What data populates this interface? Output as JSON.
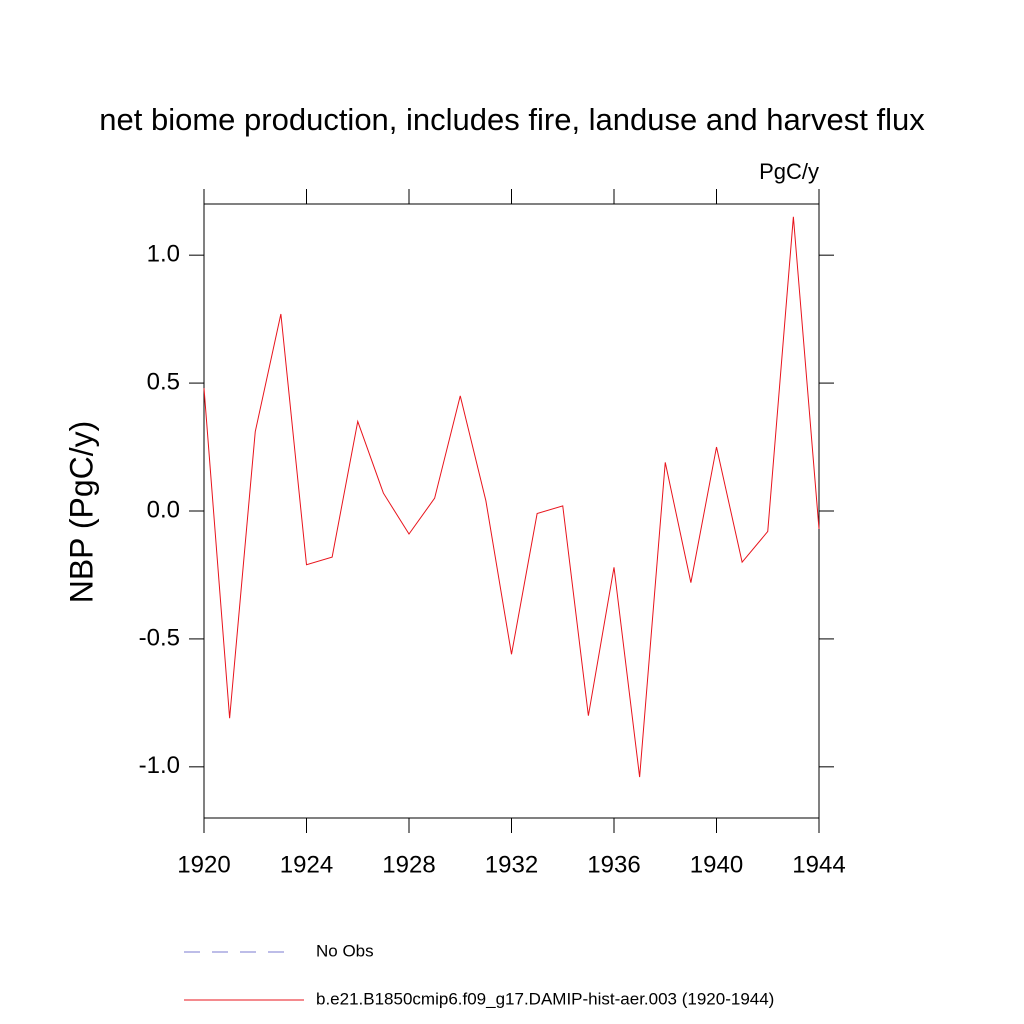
{
  "chart_data": {
    "type": "line",
    "title": "net biome production, includes fire, landuse and harvest flux",
    "units": "PgC/y",
    "y_label": "NBP  (PgC/y)",
    "x": [
      1920,
      1921,
      1922,
      1923,
      1924,
      1925,
      1926,
      1927,
      1928,
      1929,
      1930,
      1931,
      1932,
      1933,
      1934,
      1935,
      1936,
      1937,
      1938,
      1939,
      1940,
      1941,
      1942,
      1943,
      1944
    ],
    "series": [
      {
        "name": "b.e21.B1850cmip6.f09_g17.DAMIP-hist-aer.003 (1920-1944)",
        "color": "#e8141c",
        "values": [
          0.48,
          -0.81,
          0.31,
          0.77,
          -0.21,
          -0.18,
          0.35,
          0.07,
          -0.09,
          0.05,
          0.45,
          0.04,
          -0.56,
          -0.01,
          0.02,
          -0.8,
          -0.22,
          -1.04,
          0.19,
          -0.28,
          0.25,
          -0.2,
          -0.08,
          1.15,
          -0.07
        ]
      }
    ],
    "legend_entries": [
      {
        "name": "No Obs",
        "color": "#7b7bd0",
        "dash": "dashed"
      }
    ],
    "xlim": [
      1920,
      1944
    ],
    "xticks": [
      1920,
      1924,
      1928,
      1932,
      1936,
      1940,
      1944
    ],
    "ylim": [
      -1.2,
      1.2
    ],
    "yticks": [
      {
        "value": -1,
        "label": "-1.0"
      },
      -0.5,
      {
        "value": 0,
        "label": "0.0"
      },
      0.5,
      {
        "value": 1,
        "label": "1.0"
      }
    ]
  }
}
